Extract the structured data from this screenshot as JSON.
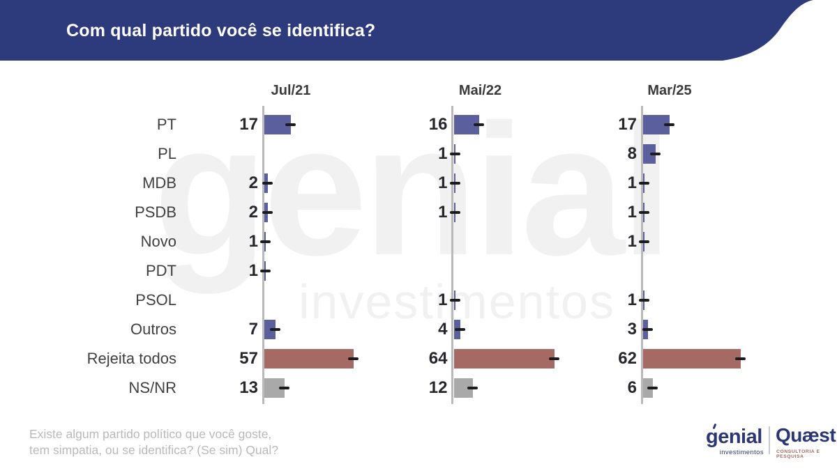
{
  "header": {
    "title": "Com qual partido você se identifica?"
  },
  "watermark": {
    "line1": "genial",
    "line2": "investimentos"
  },
  "chart_data": {
    "type": "bar",
    "orientation": "horizontal",
    "title": "Com qual partido você se identifica?",
    "value_unit": "%",
    "xlim": [
      0,
      70
    ],
    "grid": false,
    "categories": [
      "PT",
      "PL",
      "MDB",
      "PSDB",
      "Novo",
      "PDT",
      "PSOL",
      "Outros",
      "Rejeita todos",
      "NS/NR"
    ],
    "series": [
      {
        "name": "Jul/21",
        "values": [
          17,
          null,
          2,
          2,
          1,
          1,
          null,
          7,
          57,
          13
        ]
      },
      {
        "name": "Mai/22",
        "values": [
          16,
          1,
          1,
          1,
          null,
          null,
          1,
          4,
          64,
          12
        ]
      },
      {
        "name": "Mar/25",
        "values": [
          17,
          8,
          1,
          1,
          1,
          null,
          1,
          3,
          62,
          6
        ]
      }
    ],
    "annotations": "each bar ends with a black dash marker (margin-of-error tick); value labels sit left of each panel axis",
    "series_colors": {
      "parties": "#5c5f9e",
      "Rejeita todos": "#a66a64",
      "NS/NR": "#a9a9a9"
    }
  },
  "footnote": {
    "line1": "Existe algum partido político que você goste,",
    "line2": "tem simpatia, ou se identifica? (Se sim) Qual?"
  },
  "logos": {
    "genial": {
      "name": "genial",
      "sub": "investimentos"
    },
    "quaest": {
      "name": "Quæst",
      "sub": "CONSULTORIA E PESQUISA"
    }
  },
  "colors": {
    "header_band": "#2d3a7c",
    "bar_purple": "#5c5f9e",
    "bar_reject": "#a66a64",
    "bar_gray": "#a9a9a9",
    "axis_line": "#b9b9b9",
    "error_dash": "#1c1c1c",
    "watermark": "#f1f1f1",
    "footnote_text": "#b9b9b9",
    "row_label": "#3f3f3f",
    "value_label": "#26262c",
    "logo_navy": "#2b3674",
    "quaest_sub": "#a0685f",
    "title_text": "#ffffff"
  }
}
